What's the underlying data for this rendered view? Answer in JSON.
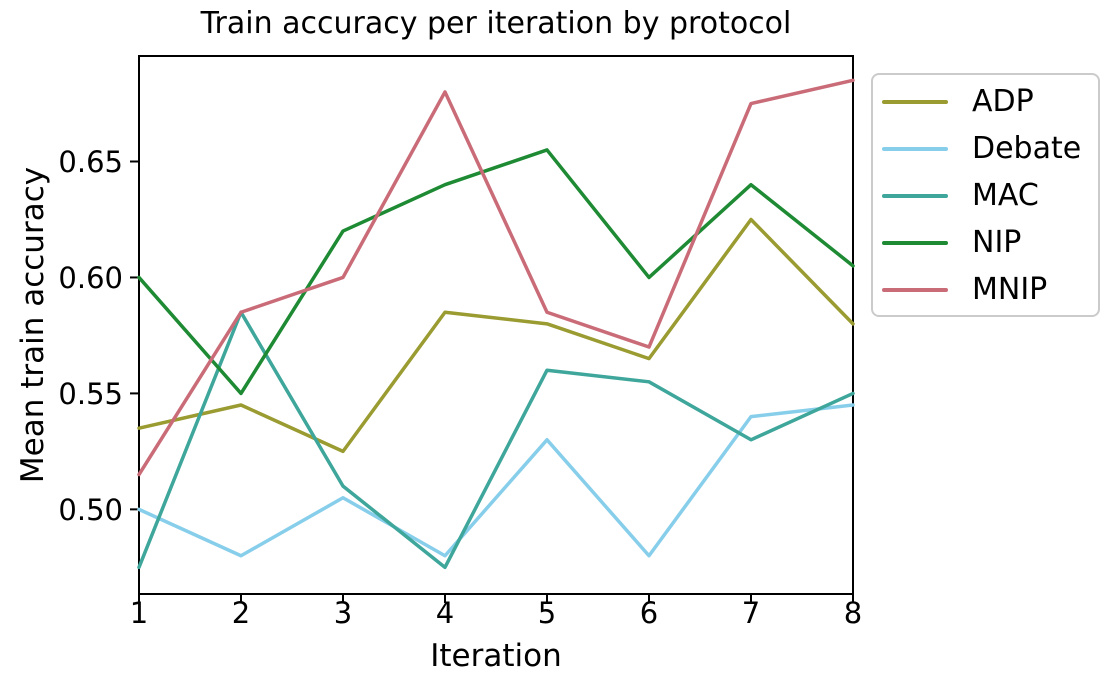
{
  "chart_data": {
    "type": "line",
    "title": "Train accuracy per iteration by protocol",
    "xlabel": "Iteration",
    "ylabel": "Mean train accuracy",
    "x": [
      1,
      2,
      3,
      4,
      5,
      6,
      7,
      8
    ],
    "xticks": [
      1,
      2,
      3,
      4,
      5,
      6,
      7,
      8
    ],
    "yticks": [
      0.5,
      0.55,
      0.6,
      0.65
    ],
    "xlim": [
      1,
      8
    ],
    "ylim": [
      0.4635,
      0.6955
    ],
    "grid": false,
    "legend_position": "outside-upper-right",
    "axis_color": "#000000",
    "background_color": "#ffffff",
    "legend_border_color": "#cbcbcb",
    "series": [
      {
        "name": "ADP",
        "color": "#9A9B31",
        "values": [
          0.535,
          0.545,
          0.525,
          0.585,
          0.58,
          0.565,
          0.625,
          0.58
        ]
      },
      {
        "name": "Debate",
        "color": "#87CEEB",
        "values": [
          0.5,
          0.48,
          0.505,
          0.48,
          0.53,
          0.48,
          0.54,
          0.545
        ]
      },
      {
        "name": "MAC",
        "color": "#3EA69B",
        "values": [
          0.475,
          0.585,
          0.51,
          0.475,
          0.56,
          0.555,
          0.53,
          0.55
        ]
      },
      {
        "name": "NIP",
        "color": "#1E8B34",
        "values": [
          0.6,
          0.55,
          0.62,
          0.64,
          0.655,
          0.6,
          0.64,
          0.605
        ]
      },
      {
        "name": "MNIP",
        "color": "#CA6B78",
        "values": [
          0.515,
          0.585,
          0.6,
          0.68,
          0.585,
          0.57,
          0.675,
          0.685
        ]
      }
    ]
  }
}
